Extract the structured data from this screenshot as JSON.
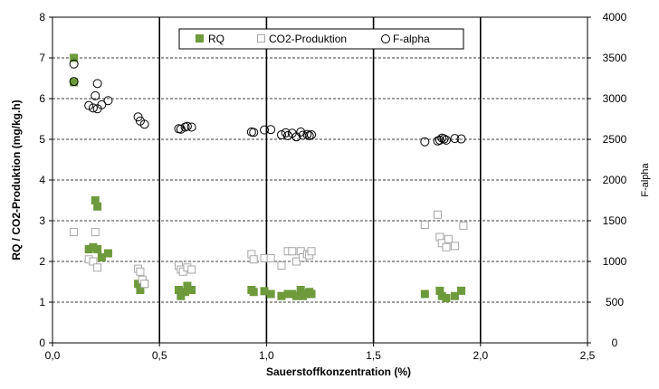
{
  "chart_data": {
    "type": "scatter",
    "title": "",
    "xlabel": "Sauerstoffkonzentration (%)",
    "ylabel": "RQ / CO2-Produktion (mg/kg.h)",
    "y2label": "F-alpha",
    "xlim": [
      0,
      2.5
    ],
    "ylim": [
      0,
      8
    ],
    "y2lim": [
      0,
      4000
    ],
    "xticks": [
      "0,0",
      "0,5",
      "1,0",
      "1,5",
      "2,0",
      "2,5"
    ],
    "yticks": [
      "0",
      "1",
      "2",
      "3",
      "4",
      "5",
      "6",
      "7",
      "8"
    ],
    "y2ticks": [
      "0",
      "500",
      "1000",
      "1500",
      "2000",
      "2500",
      "3000",
      "3500",
      "4000"
    ],
    "grid": "horizontal-dashed",
    "legend_position": "top-center",
    "series": [
      {
        "name": "RQ",
        "axis": "left",
        "marker": "filled-square",
        "color": "#6e9a3c",
        "points": [
          [
            0.1,
            7.0
          ],
          [
            0.1,
            6.4
          ],
          [
            0.2,
            3.5
          ],
          [
            0.21,
            3.35
          ],
          [
            0.17,
            2.3
          ],
          [
            0.19,
            2.35
          ],
          [
            0.21,
            2.3
          ],
          [
            0.23,
            2.1
          ],
          [
            0.26,
            2.2
          ],
          [
            0.4,
            1.45
          ],
          [
            0.41,
            1.3
          ],
          [
            0.43,
            1.45
          ],
          [
            0.59,
            1.3
          ],
          [
            0.6,
            1.15
          ],
          [
            0.62,
            1.25
          ],
          [
            0.63,
            1.4
          ],
          [
            0.65,
            1.3
          ],
          [
            0.93,
            1.3
          ],
          [
            0.94,
            1.25
          ],
          [
            0.99,
            1.27
          ],
          [
            1.02,
            1.2
          ],
          [
            1.07,
            1.15
          ],
          [
            1.1,
            1.2
          ],
          [
            1.12,
            1.2
          ],
          [
            1.14,
            1.15
          ],
          [
            1.16,
            1.3
          ],
          [
            1.17,
            1.15
          ],
          [
            1.19,
            1.2
          ],
          [
            1.2,
            1.25
          ],
          [
            1.21,
            1.2
          ],
          [
            1.74,
            1.2
          ],
          [
            1.81,
            1.28
          ],
          [
            1.82,
            1.15
          ],
          [
            1.84,
            1.1
          ],
          [
            1.88,
            1.15
          ],
          [
            1.91,
            1.28
          ]
        ]
      },
      {
        "name": "CO2-Produktion",
        "axis": "left",
        "marker": "open-square",
        "color": "#a6a6a6",
        "points": [
          [
            0.1,
            2.72
          ],
          [
            0.17,
            2.05
          ],
          [
            0.19,
            2.0
          ],
          [
            0.2,
            2.72
          ],
          [
            0.21,
            1.85
          ],
          [
            0.4,
            1.82
          ],
          [
            0.41,
            1.75
          ],
          [
            0.42,
            1.55
          ],
          [
            0.43,
            1.45
          ],
          [
            0.59,
            1.9
          ],
          [
            0.6,
            1.8
          ],
          [
            0.61,
            1.75
          ],
          [
            0.63,
            1.85
          ],
          [
            0.65,
            1.8
          ],
          [
            0.93,
            2.18
          ],
          [
            0.94,
            2.05
          ],
          [
            0.99,
            2.08
          ],
          [
            1.02,
            2.08
          ],
          [
            1.07,
            1.9
          ],
          [
            1.1,
            2.25
          ],
          [
            1.12,
            2.25
          ],
          [
            1.14,
            2.0
          ],
          [
            1.16,
            2.25
          ],
          [
            1.17,
            2.1
          ],
          [
            1.19,
            2.18
          ],
          [
            1.2,
            2.15
          ],
          [
            1.21,
            2.25
          ],
          [
            1.74,
            2.9
          ],
          [
            1.8,
            3.15
          ],
          [
            1.81,
            2.6
          ],
          [
            1.82,
            2.45
          ],
          [
            1.84,
            2.35
          ],
          [
            1.85,
            2.55
          ],
          [
            1.88,
            2.38
          ],
          [
            1.92,
            2.88
          ]
        ]
      },
      {
        "name": "F-alpha",
        "axis": "right",
        "marker": "open-circle",
        "color": "#000000",
        "points": [
          [
            0.1,
            3425
          ],
          [
            0.1,
            3210
          ],
          [
            0.17,
            2915
          ],
          [
            0.19,
            2885
          ],
          [
            0.2,
            3035
          ],
          [
            0.21,
            2875
          ],
          [
            0.21,
            3185
          ],
          [
            0.23,
            2925
          ],
          [
            0.26,
            2975
          ],
          [
            0.4,
            2775
          ],
          [
            0.41,
            2725
          ],
          [
            0.43,
            2685
          ],
          [
            0.59,
            2630
          ],
          [
            0.6,
            2625
          ],
          [
            0.62,
            2650
          ],
          [
            0.63,
            2660
          ],
          [
            0.65,
            2650
          ],
          [
            0.93,
            2590
          ],
          [
            0.94,
            2585
          ],
          [
            0.99,
            2615
          ],
          [
            1.02,
            2620
          ],
          [
            1.07,
            2555
          ],
          [
            1.09,
            2580
          ],
          [
            1.1,
            2545
          ],
          [
            1.12,
            2575
          ],
          [
            1.14,
            2530
          ],
          [
            1.16,
            2590
          ],
          [
            1.17,
            2550
          ],
          [
            1.19,
            2560
          ],
          [
            1.2,
            2545
          ],
          [
            1.21,
            2555
          ],
          [
            1.74,
            2470
          ],
          [
            1.8,
            2480
          ],
          [
            1.81,
            2490
          ],
          [
            1.82,
            2515
          ],
          [
            1.83,
            2505
          ],
          [
            1.84,
            2490
          ],
          [
            1.88,
            2510
          ],
          [
            1.91,
            2505
          ]
        ]
      }
    ]
  }
}
